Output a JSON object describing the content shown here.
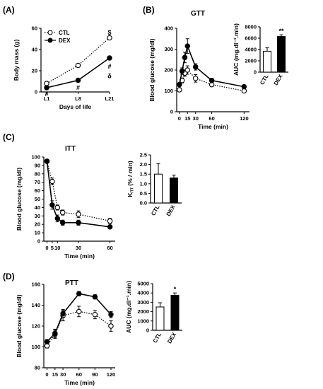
{
  "chart_data": [
    {
      "id": "A",
      "panel_label": "(A)",
      "type": "line",
      "title": "",
      "xlabel": "Days of life",
      "ylabel": "Body mass (g)",
      "x": [
        "L1",
        "L8",
        "L21"
      ],
      "ylim": [
        0,
        60
      ],
      "yticks": [
        0,
        20,
        40,
        60
      ],
      "series": [
        {
          "name": "CTL",
          "values": [
            8,
            25,
            51
          ],
          "err": [
            0.5,
            0.8,
            1.5
          ],
          "style": "dotted",
          "marker": "open"
        },
        {
          "name": "DEX",
          "values": [
            4,
            11,
            32
          ],
          "err": [
            0.4,
            0.6,
            1.0
          ],
          "style": "solid",
          "marker": "filled"
        }
      ],
      "legend": "top-left",
      "annotations": [
        {
          "text": "#",
          "x": "L1",
          "y": -2
        },
        {
          "text": "#",
          "x": "L8",
          "y": 4
        },
        {
          "text": "$",
          "x": "L21",
          "y": 56
        },
        {
          "text": "#",
          "x": "L21",
          "y": 24
        },
        {
          "text": "δ",
          "x": "L21",
          "y": 15
        }
      ]
    },
    {
      "id": "B",
      "panel_label": "(B)",
      "type": "line",
      "title": "GTT",
      "xlabel": "Time (min)",
      "ylabel": "Blood glucose (mg/dl)",
      "x": [
        0,
        5,
        10,
        15,
        30,
        60,
        120
      ],
      "xticks": [
        0,
        15,
        30,
        60,
        120
      ],
      "xlim": [
        -5,
        130
      ],
      "ylim": [
        0,
        400
      ],
      "yticks": [
        0,
        100,
        200,
        300,
        400
      ],
      "series": [
        {
          "name": "CTL",
          "values": [
            105,
            150,
            185,
            200,
            160,
            130,
            100
          ],
          "err": [
            8,
            12,
            15,
            20,
            18,
            10,
            8
          ],
          "style": "dotted",
          "marker": "open"
        },
        {
          "name": "DEX",
          "values": [
            130,
            195,
            260,
            315,
            215,
            150,
            120
          ],
          "err": [
            8,
            15,
            25,
            35,
            15,
            10,
            8
          ],
          "style": "solid",
          "marker": "filled"
        }
      ]
    },
    {
      "id": "B-AUC",
      "type": "bar",
      "ylabel": "AUC (mg.dl⁻¹.min)",
      "categories": [
        "CTL",
        "DEX"
      ],
      "values": [
        3700,
        6300
      ],
      "err": [
        600,
        300
      ],
      "ylim": [
        0,
        8000
      ],
      "yticks": [
        0,
        2000,
        4000,
        6000,
        8000
      ],
      "annotation": "**"
    },
    {
      "id": "C",
      "panel_label": "(C)",
      "type": "line",
      "title": "ITT",
      "xlabel": "Time (min)",
      "ylabel": "Blood glucose (mg/dl)",
      "x": [
        0,
        5,
        10,
        15,
        30,
        60
      ],
      "xticks": [
        0,
        5,
        10,
        30,
        60
      ],
      "xlim": [
        -3,
        65
      ],
      "ylim": [
        0,
        100
      ],
      "yticks": [
        0,
        10,
        20,
        30,
        40,
        50,
        60,
        70,
        80,
        90,
        100
      ],
      "series": [
        {
          "name": "CTL",
          "values": [
            95,
            71,
            40,
            34,
            32,
            24
          ],
          "err": [
            2,
            4,
            3,
            3,
            4,
            3
          ],
          "style": "dotted",
          "marker": "open"
        },
        {
          "name": "DEX",
          "values": [
            95,
            43,
            27,
            22,
            22,
            17
          ],
          "err": [
            2,
            5,
            4,
            3,
            3,
            2
          ],
          "style": "solid",
          "marker": "filled"
        }
      ]
    },
    {
      "id": "C-KITT",
      "type": "bar",
      "ylabel": "K_ITT (% / min)",
      "categories": [
        "CTL",
        "DEX"
      ],
      "values": [
        1.5,
        1.3
      ],
      "err": [
        0.55,
        0.15
      ],
      "ylim": [
        0,
        2.5
      ],
      "yticks": [
        0.0,
        0.5,
        1.0,
        1.5,
        2.0,
        2.5
      ]
    },
    {
      "id": "D",
      "panel_label": "(D)",
      "type": "line",
      "title": "PTT",
      "xlabel": "Time (min)",
      "ylabel": "Blood glucose (mg/dl)",
      "x": [
        0,
        15,
        30,
        60,
        90,
        120
      ],
      "xticks": [
        0,
        15,
        30,
        60,
        90,
        120
      ],
      "xlim": [
        -6,
        128
      ],
      "ylim": [
        80,
        160
      ],
      "yticks": [
        80,
        100,
        120,
        140,
        160
      ],
      "series": [
        {
          "name": "CTL",
          "values": [
            101,
            112,
            130,
            134,
            131,
            120
          ],
          "err": [
            2,
            4,
            5,
            5,
            4,
            5
          ],
          "style": "dotted",
          "marker": "open"
        },
        {
          "name": "DEX",
          "values": [
            105,
            113,
            132,
            151,
            148,
            131
          ],
          "err": [
            2,
            4,
            4,
            2,
            2,
            3
          ],
          "style": "solid",
          "marker": "filled"
        }
      ]
    },
    {
      "id": "D-AUC",
      "type": "bar",
      "ylabel": "AUC (mg.dl⁻¹.min)",
      "categories": [
        "CTL",
        "DEX"
      ],
      "values": [
        2500,
        3750
      ],
      "err": [
        450,
        250
      ],
      "ylim": [
        0,
        5000
      ],
      "yticks": [
        0,
        1000,
        2000,
        3000,
        4000,
        5000
      ],
      "annotation": "*"
    }
  ]
}
